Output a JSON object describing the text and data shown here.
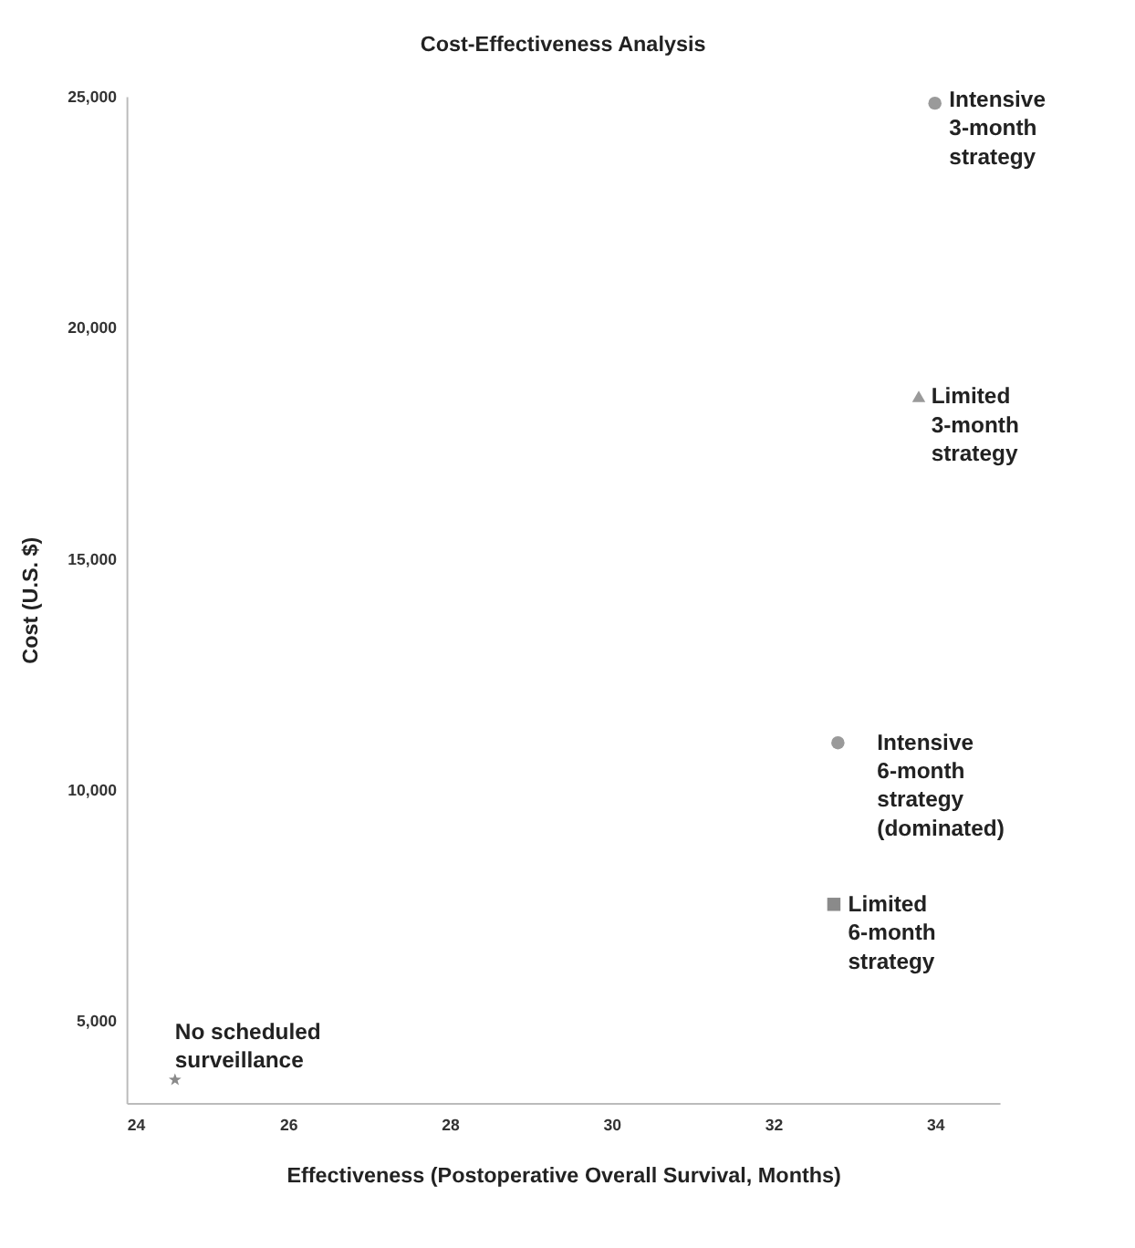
{
  "chart_data": {
    "type": "scatter",
    "title": "Cost-Effectiveness Analysis",
    "xlabel": "Effectiveness (Postoperative Overall Survival, Months)",
    "ylabel": "Cost (U.S. $)",
    "xlim": [
      24,
      34.8
    ],
    "xticks": [
      24,
      26,
      28,
      30,
      32,
      34
    ],
    "ylim": [
      3200,
      25000
    ],
    "yticks": [
      {
        "value": 5000,
        "label": "5,000"
      },
      {
        "value": 10000,
        "label": "10,000"
      },
      {
        "value": 15000,
        "label": "15,000"
      },
      {
        "value": 20000,
        "label": "20,000"
      },
      {
        "value": 25000,
        "label": "25,000"
      }
    ],
    "grid": false,
    "series": [
      {
        "color": "#9a9a9a",
        "marker": "circle",
        "x": [
          34.0
        ],
        "values": [
          24850
        ]
      },
      {
        "color": "#9a9a9a",
        "marker": "triangle",
        "x": [
          33.8
        ],
        "values": [
          18500
        ]
      },
      {
        "color": "#9a9a9a",
        "marker": "circle",
        "x": [
          32.8
        ],
        "values": [
          11000
        ]
      },
      {
        "color": "#8a8a8a",
        "marker": "square",
        "x": [
          32.75
        ],
        "values": [
          7500
        ]
      },
      {
        "color": "#8a8a8a",
        "marker": "star",
        "x": [
          24.6
        ],
        "values": [
          3700
        ]
      }
    ],
    "annotations": [
      {
        "text": "Intensive\n3-month\nstrategy",
        "x": 34.0,
        "y": 24850
      },
      {
        "text": "Limited\n3-month\nstrategy",
        "x": 33.8,
        "y": 18500
      },
      {
        "text": "Intensive\n6-month\nstrategy\n(dominated)",
        "x": 32.8,
        "y": 11000
      },
      {
        "text": "Limited\n6-month\nstrategy",
        "x": 32.75,
        "y": 7500
      },
      {
        "text": "No scheduled\nsurveillance",
        "x": 24.6,
        "y": 3700
      }
    ]
  }
}
